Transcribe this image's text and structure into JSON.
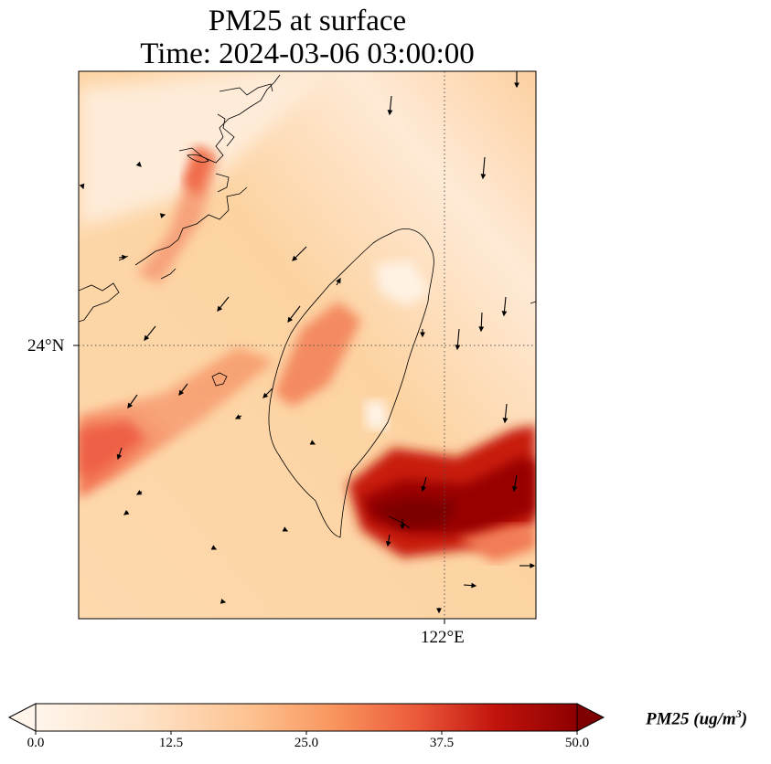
{
  "title_line1": "PM25 at surface",
  "title_line2": "Time: 2024-03-06 03:00:00",
  "lat_tick": "24°N",
  "lon_tick": "122°E",
  "colorbar": {
    "label": "PM25 (ug/m",
    "label_sup": "3",
    "label_end": ")",
    "min": 0.0,
    "max": 50.0,
    "ticks": [
      "0.0",
      "12.5",
      "25.0",
      "37.5",
      "50.0"
    ],
    "colormap": [
      "#fff5eb",
      "#fdd9b4",
      "#fdb97d",
      "#f4794f",
      "#d7301f",
      "#a50000",
      "#7f0000"
    ],
    "extend": "both"
  },
  "map": {
    "field": "PM25",
    "units": "ug/m3",
    "gridlines": "dotted",
    "features": [
      "coastlines",
      "wind-vectors"
    ]
  }
}
